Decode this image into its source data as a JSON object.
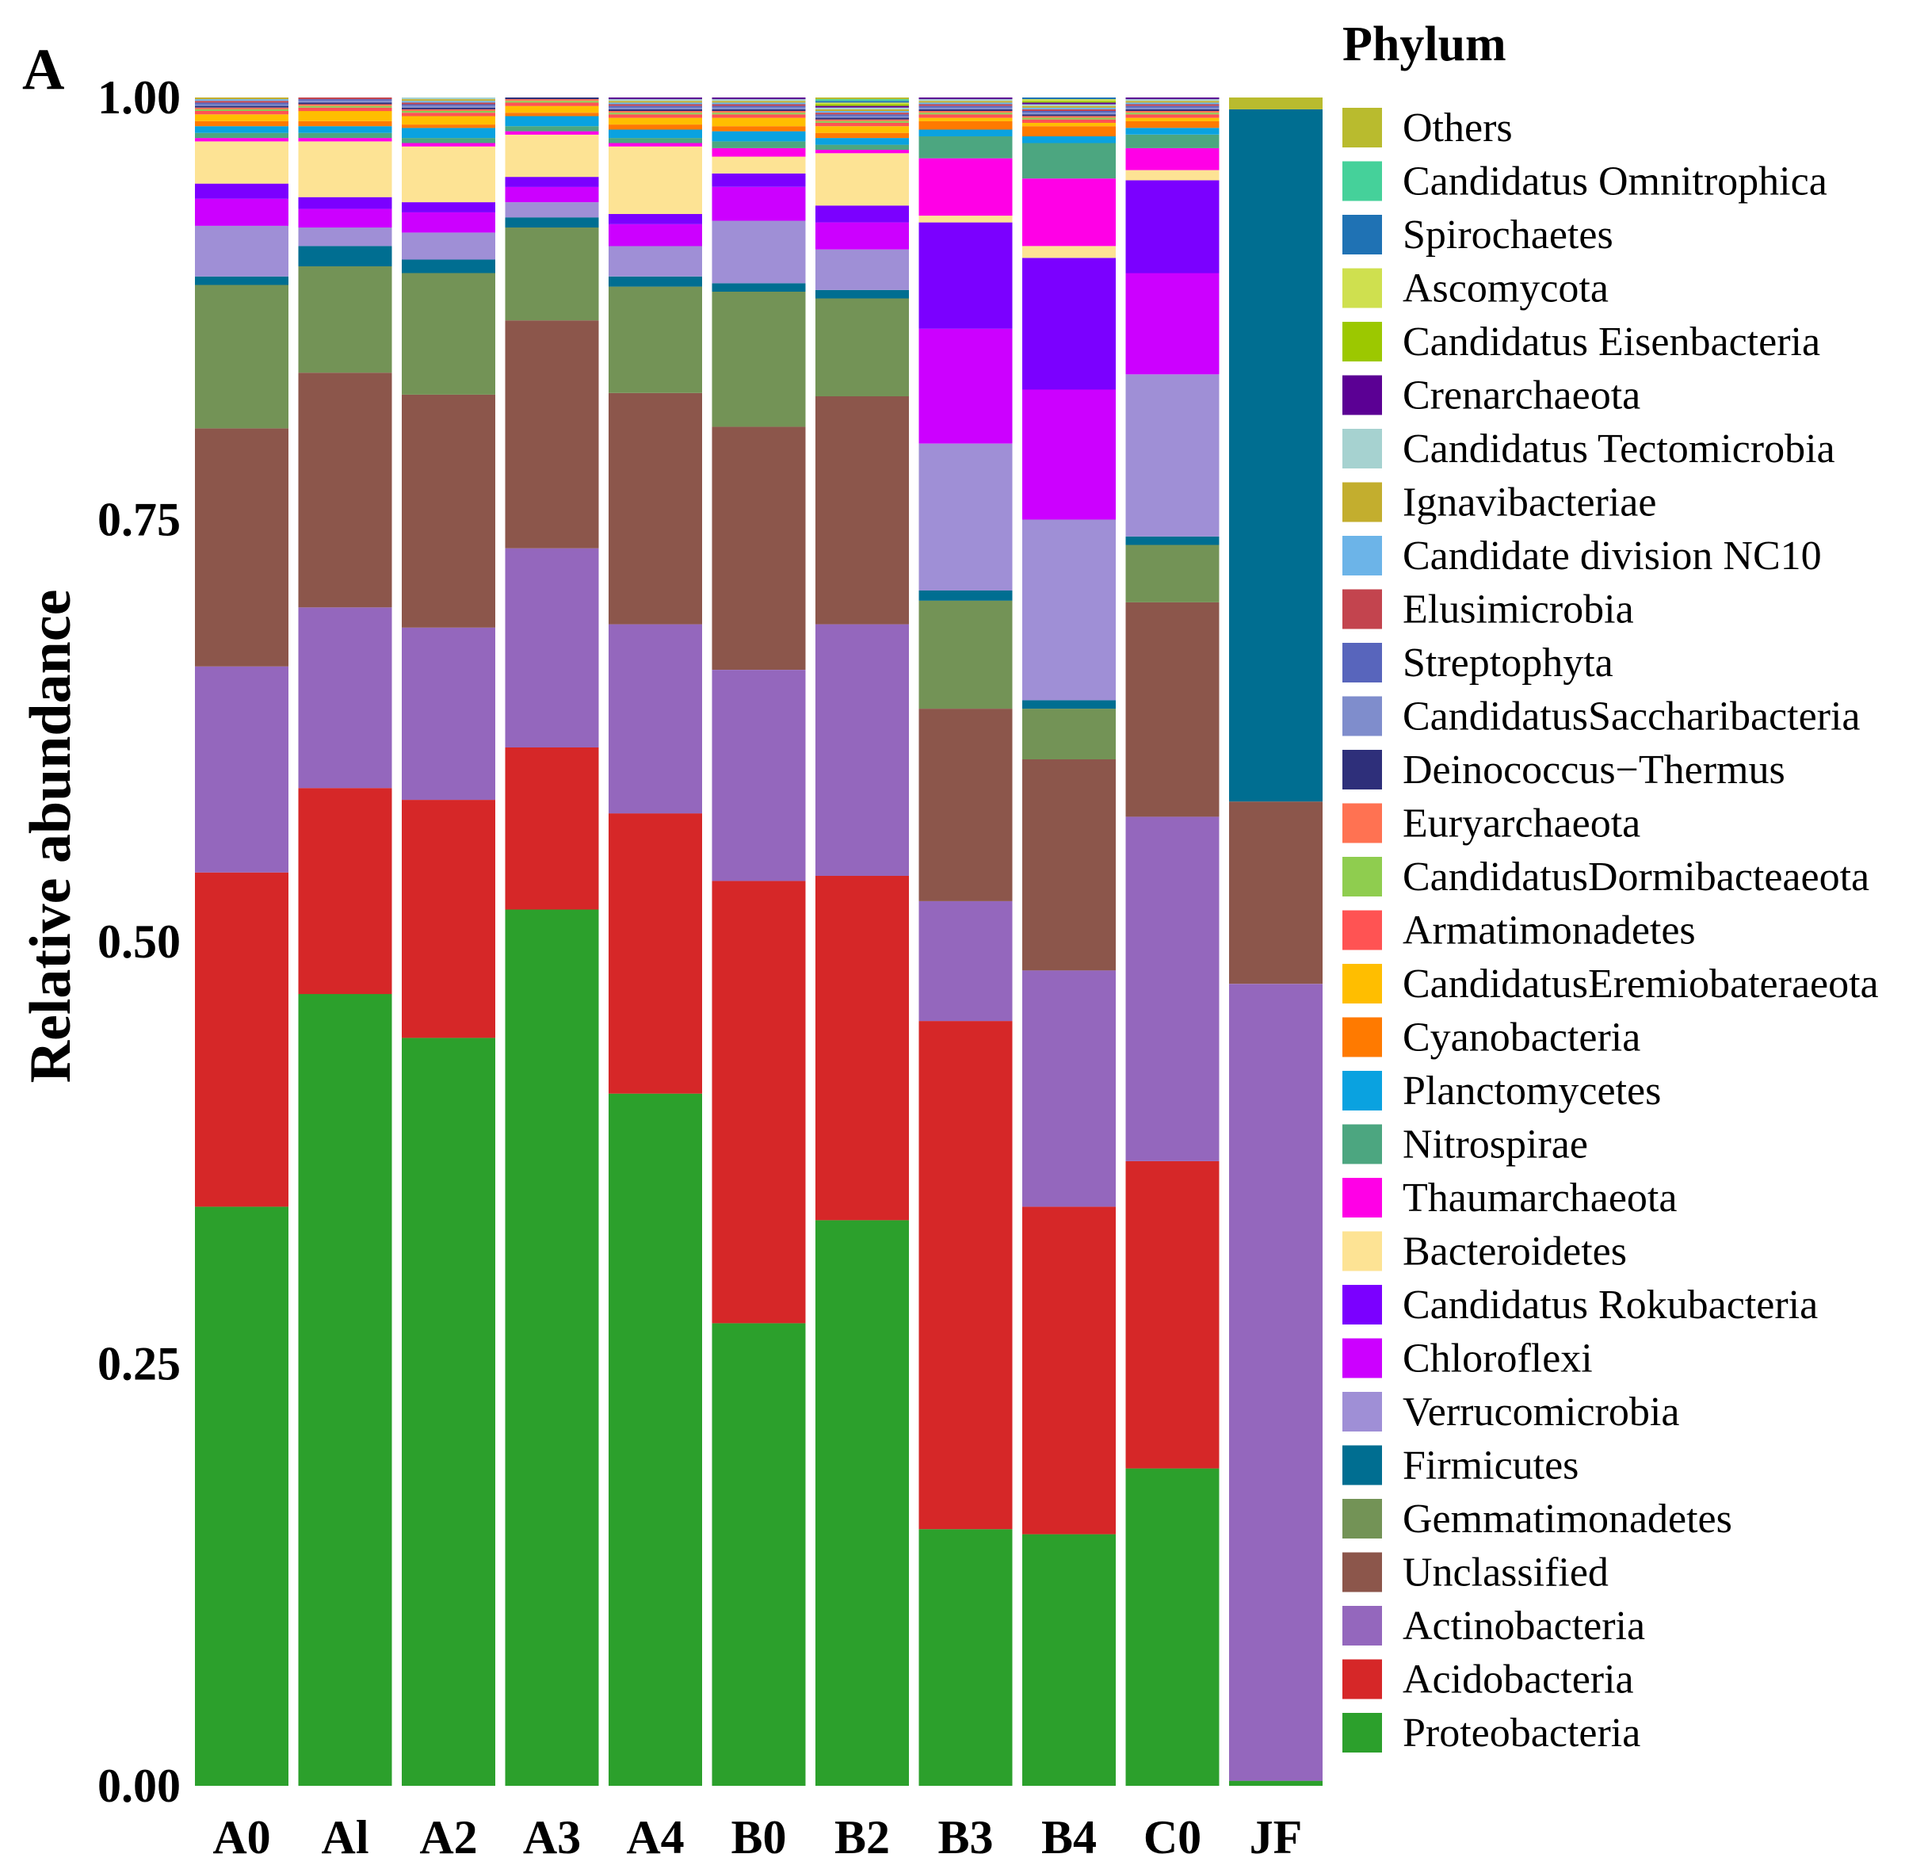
{
  "chart_data": {
    "type": "bar",
    "stacked": true,
    "panel_label": "A",
    "title": "",
    "xlabel": "",
    "ylabel": "Relative abundance",
    "ylim": [
      0,
      1
    ],
    "yticks": [
      "0.00",
      "0.25",
      "0.50",
      "0.75",
      "1.00"
    ],
    "ytick_values": [
      0,
      0.25,
      0.5,
      0.75,
      1.0
    ],
    "legend_title": "Phylum",
    "legend_position": "right",
    "categories": [
      "A0",
      "Al",
      "A2",
      "A3",
      "A4",
      "B0",
      "B2",
      "B3",
      "B4",
      "C0",
      "JF"
    ],
    "series": [
      {
        "name": "Proteobacteria",
        "color": "#2CA02C",
        "values": [
          0.343,
          0.469,
          0.443,
          0.519,
          0.41,
          0.274,
          0.335,
          0.152,
          0.149,
          0.188,
          0.003
        ]
      },
      {
        "name": "Acidobacteria",
        "color": "#D62728",
        "values": [
          0.198,
          0.122,
          0.141,
          0.096,
          0.166,
          0.262,
          0.204,
          0.301,
          0.194,
          0.182,
          0.0
        ]
      },
      {
        "name": "Actinobacteria",
        "color": "#9467BD",
        "values": [
          0.122,
          0.107,
          0.102,
          0.118,
          0.112,
          0.125,
          0.149,
          0.071,
          0.14,
          0.204,
          0.472
        ]
      },
      {
        "name": "Unclassified",
        "color": "#8C564B",
        "values": [
          0.141,
          0.139,
          0.138,
          0.135,
          0.137,
          0.144,
          0.135,
          0.114,
          0.125,
          0.127,
          0.108
        ]
      },
      {
        "name": "Gemmatimonadetes",
        "color": "#739356",
        "values": [
          0.085,
          0.063,
          0.072,
          0.055,
          0.063,
          0.08,
          0.058,
          0.064,
          0.03,
          0.034,
          0.0
        ]
      },
      {
        "name": "Firmicutes",
        "color": "#006E91",
        "values": [
          0.005,
          0.012,
          0.008,
          0.006,
          0.006,
          0.005,
          0.005,
          0.006,
          0.005,
          0.005,
          0.41
        ]
      },
      {
        "name": "Verrucomicrobia",
        "color": "#9F8FD6",
        "values": [
          0.03,
          0.011,
          0.016,
          0.009,
          0.018,
          0.037,
          0.024,
          0.087,
          0.107,
          0.096,
          0.0
        ]
      },
      {
        "name": "Chloroflexi",
        "color": "#CC00FF",
        "values": [
          0.016,
          0.011,
          0.012,
          0.009,
          0.013,
          0.02,
          0.016,
          0.068,
          0.077,
          0.06,
          0.0
        ]
      },
      {
        "name": "Candidatus Rokubacteria",
        "color": "#7B00FF",
        "values": [
          0.009,
          0.007,
          0.006,
          0.006,
          0.006,
          0.008,
          0.01,
          0.063,
          0.078,
          0.055,
          0.0
        ]
      },
      {
        "name": "Bacteroidetes",
        "color": "#FDE394",
        "values": [
          0.025,
          0.033,
          0.033,
          0.025,
          0.04,
          0.01,
          0.031,
          0.004,
          0.007,
          0.006,
          0.0
        ]
      },
      {
        "name": "Thaumarchaeota",
        "color": "#FF00E6",
        "values": [
          0.002,
          0.002,
          0.002,
          0.002,
          0.002,
          0.005,
          0.002,
          0.034,
          0.04,
          0.013,
          0.0
        ]
      },
      {
        "name": "Nitrospirae",
        "color": "#4CA680",
        "values": [
          0.003,
          0.003,
          0.003,
          0.003,
          0.003,
          0.004,
          0.003,
          0.013,
          0.021,
          0.008,
          0.0
        ]
      },
      {
        "name": "Planctomycetes",
        "color": "#0AA2E0",
        "values": [
          0.004,
          0.004,
          0.006,
          0.006,
          0.005,
          0.006,
          0.004,
          0.004,
          0.004,
          0.004,
          0.0
        ]
      },
      {
        "name": "Cyanobacteria",
        "color": "#FF7A00",
        "values": [
          0.003,
          0.003,
          0.002,
          0.002,
          0.003,
          0.003,
          0.003,
          0.005,
          0.006,
          0.004,
          0.0
        ]
      },
      {
        "name": "CandidatusEremiobateraeota",
        "color": "#FFBE00",
        "values": [
          0.004,
          0.006,
          0.005,
          0.004,
          0.004,
          0.005,
          0.004,
          0.002,
          0.002,
          0.002,
          0.0
        ]
      },
      {
        "name": "Armatimonadetes",
        "color": "#FF5353",
        "values": [
          0.002,
          0.002,
          0.002,
          0.002,
          0.002,
          0.002,
          0.002,
          0.002,
          0.002,
          0.002,
          0.0
        ]
      },
      {
        "name": "CandidatusDormibacteaeota",
        "color": "#8FCD4F",
        "values": [
          0.001,
          0.001,
          0.001,
          0.001,
          0.001,
          0.001,
          0.001,
          0.001,
          0.001,
          0.001,
          0.0
        ]
      },
      {
        "name": "Euryarchaeota",
        "color": "#FF7252",
        "values": [
          0.001,
          0.001,
          0.001,
          0.001,
          0.001,
          0.001,
          0.001,
          0.001,
          0.001,
          0.001,
          0.0
        ]
      },
      {
        "name": "Deinococcus−Thermus",
        "color": "#2E2F7A",
        "values": [
          0.001,
          0.001,
          0.001,
          0.001,
          0.001,
          0.001,
          0.001,
          0.001,
          0.001,
          0.001,
          0.0
        ]
      },
      {
        "name": "CandidatusSaccharibacteria",
        "color": "#7F8DCC",
        "values": [
          0.001,
          0.001,
          0.001,
          0.001,
          0.001,
          0.001,
          0.001,
          0.001,
          0.001,
          0.001,
          0.0
        ]
      },
      {
        "name": "Streptophyta",
        "color": "#5865BC",
        "values": [
          0.001,
          0.001,
          0.001,
          0.001,
          0.001,
          0.001,
          0.001,
          0.001,
          0.001,
          0.001,
          0.0
        ]
      },
      {
        "name": "Elusimicrobia",
        "color": "#C3444E",
        "values": [
          0.001,
          0.001,
          0.001,
          0.001,
          0.001,
          0.001,
          0.001,
          0.001,
          0.001,
          0.001,
          0.0
        ]
      },
      {
        "name": "Candidate division NC10",
        "color": "#6CB4E8",
        "values": [
          0.001,
          0.001,
          0.001,
          0.001,
          0.001,
          0.001,
          0.001,
          0.001,
          0.001,
          0.001,
          0.0
        ]
      },
      {
        "name": "Ignavibacteriae",
        "color": "#C3AE2E",
        "values": [
          0.001,
          0.001,
          0.001,
          0.001,
          0.001,
          0.001,
          0.001,
          0.001,
          0.001,
          0.001,
          0.0
        ]
      },
      {
        "name": "Candidatus Tectomicrobia",
        "color": "#A6D2D0",
        "values": [
          0.001,
          0.001,
          0.001,
          0.001,
          0.001,
          0.001,
          0.001,
          0.001,
          0.001,
          0.001,
          0.0
        ]
      },
      {
        "name": "Crenarchaeota",
        "color": "#5B0094",
        "values": [
          0.001,
          0.001,
          0.001,
          0.001,
          0.001,
          0.001,
          0.001,
          0.001,
          0.001,
          0.001,
          0.0
        ]
      },
      {
        "name": "Candidatus Eisenbacteria",
        "color": "#9CC800",
        "values": [
          0.001,
          0.001,
          0.001,
          0.001,
          0.001,
          0.001,
          0.001,
          0.001,
          0.001,
          0.001,
          0.0
        ]
      },
      {
        "name": "Ascomycota",
        "color": "#CFE04F",
        "values": [
          0.001,
          0.001,
          0.001,
          0.001,
          0.001,
          0.001,
          0.001,
          0.001,
          0.001,
          0.001,
          0.0
        ]
      },
      {
        "name": "Spirochaetes",
        "color": "#1F72B4",
        "values": [
          0.001,
          0.001,
          0.001,
          0.001,
          0.001,
          0.001,
          0.001,
          0.001,
          0.001,
          0.001,
          0.0
        ]
      },
      {
        "name": "Candidatus Omnitrophica",
        "color": "#45D19A",
        "values": [
          0.001,
          0.001,
          0.001,
          0.001,
          0.001,
          0.001,
          0.001,
          0.001,
          0.001,
          0.001,
          0.0
        ]
      },
      {
        "name": "Others",
        "color": "#B9BB2E",
        "values": [
          0.005,
          0.004,
          0.005,
          0.004,
          0.004,
          0.005,
          0.005,
          0.005,
          0.005,
          0.005,
          0.007
        ]
      }
    ]
  }
}
